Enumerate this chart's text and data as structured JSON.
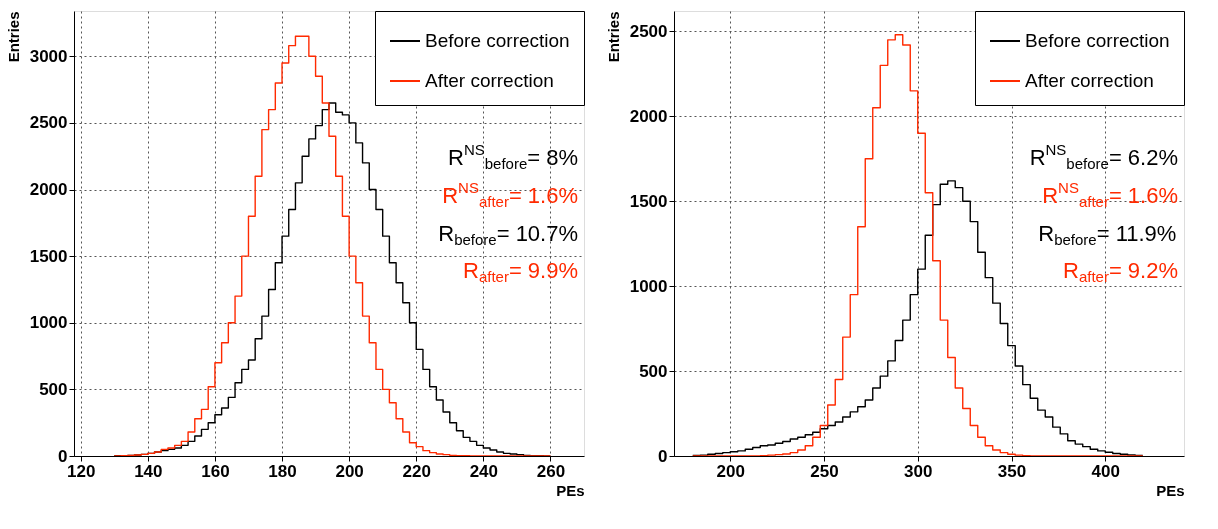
{
  "chart_data": [
    {
      "type": "histogram",
      "xlabel": "PEs",
      "ylabel": "Entries",
      "xlim": [
        118,
        270
      ],
      "ylim": [
        0,
        3340
      ],
      "xticks": [
        120,
        140,
        160,
        180,
        200,
        220,
        240,
        260
      ],
      "yticks": [
        0,
        500,
        1000,
        1500,
        2000,
        2500,
        3000
      ],
      "grid": true,
      "legend": "top right",
      "bins": [
        130,
        132,
        134,
        136,
        138,
        140,
        142,
        144,
        146,
        148,
        150,
        152,
        154,
        156,
        158,
        160,
        162,
        164,
        166,
        168,
        170,
        172,
        174,
        176,
        178,
        180,
        182,
        184,
        186,
        188,
        190,
        192,
        194,
        196,
        198,
        200,
        202,
        204,
        206,
        208,
        210,
        212,
        214,
        216,
        218,
        220,
        222,
        224,
        226,
        228,
        230,
        232,
        234,
        236,
        238,
        240,
        242,
        244,
        246,
        248,
        250,
        252,
        254,
        256,
        258,
        260
      ],
      "series": [
        {
          "name": "Before correction",
          "color": "#000000",
          "values": [
            2,
            3,
            5,
            8,
            12,
            20,
            30,
            40,
            50,
            60,
            80,
            110,
            150,
            200,
            250,
            310,
            360,
            440,
            550,
            650,
            720,
            880,
            1050,
            1250,
            1450,
            1650,
            1850,
            2050,
            2250,
            2380,
            2480,
            2600,
            2650,
            2580,
            2560,
            2500,
            2350,
            2200,
            2000,
            1850,
            1650,
            1450,
            1300,
            1150,
            1000,
            800,
            650,
            520,
            420,
            330,
            250,
            190,
            140,
            110,
            80,
            60,
            45,
            30,
            20,
            15,
            10,
            5,
            3,
            2,
            1
          ]
        },
        {
          "name": "After correction",
          "color": "#ff2a00",
          "values": [
            1,
            2,
            4,
            8,
            12,
            20,
            30,
            50,
            60,
            80,
            110,
            180,
            280,
            350,
            520,
            700,
            850,
            1000,
            1200,
            1500,
            1800,
            2100,
            2450,
            2600,
            2800,
            2950,
            3080,
            3150,
            3150,
            3000,
            2850,
            2650,
            2400,
            2100,
            1800,
            1500,
            1300,
            1050,
            850,
            650,
            500,
            400,
            280,
            180,
            100,
            70,
            40,
            25,
            15,
            10,
            5,
            3,
            2,
            0,
            0,
            0,
            0,
            0,
            0,
            0,
            0,
            0,
            0,
            0,
            0
          ]
        }
      ],
      "annotations": [
        "R$^{NS}$$_{before}$= 8%",
        "R$^{NS}$$_{after}$= 1.6%",
        "R$_{before}$= 10.7%",
        "R$_{after}$= 9.9%"
      ]
    },
    {
      "type": "histogram",
      "xlabel": "PEs",
      "ylabel": "Entries",
      "xlim": [
        170,
        442
      ],
      "ylim": [
        0,
        2620
      ],
      "xticks": [
        200,
        250,
        300,
        350,
        400
      ],
      "yticks": [
        0,
        500,
        1000,
        1500,
        2000,
        2500
      ],
      "grid": true,
      "legend": "top right",
      "bins": [
        180,
        184,
        188,
        192,
        196,
        200,
        204,
        208,
        212,
        216,
        220,
        224,
        228,
        232,
        236,
        240,
        244,
        248,
        252,
        256,
        260,
        264,
        268,
        272,
        276,
        280,
        284,
        288,
        292,
        296,
        300,
        304,
        308,
        312,
        316,
        320,
        324,
        328,
        332,
        336,
        340,
        344,
        348,
        352,
        356,
        360,
        364,
        368,
        372,
        376,
        380,
        384,
        388,
        392,
        396,
        400,
        404,
        408,
        412,
        416,
        420
      ],
      "series": [
        {
          "name": "Before correction",
          "color": "#000000",
          "values": [
            3,
            5,
            10,
            15,
            20,
            25,
            30,
            40,
            50,
            60,
            65,
            75,
            85,
            100,
            110,
            125,
            140,
            160,
            180,
            200,
            230,
            260,
            290,
            330,
            400,
            470,
            560,
            680,
            800,
            950,
            1100,
            1300,
            1480,
            1600,
            1620,
            1580,
            1500,
            1380,
            1200,
            1050,
            900,
            780,
            650,
            530,
            420,
            340,
            270,
            230,
            170,
            130,
            90,
            70,
            55,
            40,
            30,
            22,
            15,
            10,
            6,
            3
          ]
        },
        {
          "name": "After correction",
          "color": "#ff2a00",
          "values": [
            0,
            0,
            0,
            0,
            0,
            0,
            0,
            0,
            1,
            2,
            5,
            8,
            12,
            20,
            35,
            60,
            110,
            180,
            300,
            450,
            700,
            950,
            1350,
            1750,
            2050,
            2300,
            2450,
            2480,
            2420,
            2150,
            1900,
            1550,
            1150,
            800,
            580,
            400,
            280,
            180,
            110,
            60,
            35,
            20,
            10,
            5,
            2,
            1,
            0,
            0,
            0,
            0,
            0,
            0,
            0,
            0,
            0,
            0,
            0,
            0,
            0,
            0
          ]
        }
      ],
      "annotations": [
        "R$^{NS}$$_{before}$= 6.2%",
        "R$^{NS}$$_{after}$= 1.6%",
        "R$_{before}$= 11.9%",
        "R$_{after}$= 9.2%"
      ]
    }
  ]
}
